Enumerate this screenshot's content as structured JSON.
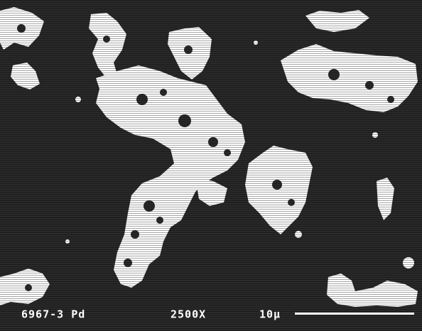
{
  "labels": {
    "sample": "6967-3 Pd",
    "magnification": "2500X",
    "scale": "10µ"
  }
}
